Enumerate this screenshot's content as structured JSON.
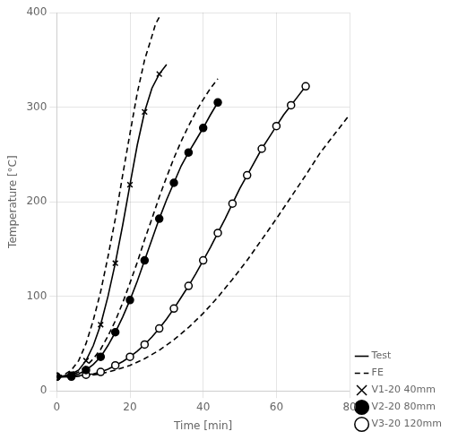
{
  "chart_data": {
    "type": "line",
    "xlabel": "Time [min]",
    "ylabel": "Temperature [°C]",
    "xlim": [
      0,
      80
    ],
    "ylim": [
      0,
      400
    ],
    "xticks": [
      0,
      20,
      40,
      60,
      80
    ],
    "yticks": [
      0,
      100,
      200,
      300,
      400
    ],
    "grid": true,
    "legend": "lower right",
    "color": "#000000",
    "legend_entries": [
      {
        "label": "Test",
        "line_style": "solid"
      },
      {
        "label": "FE",
        "line_style": "dashed"
      },
      {
        "label": "V1-20 40mm",
        "marker": "x"
      },
      {
        "label": "V2-20 80mm",
        "marker": "circle_filled"
      },
      {
        "label": "V3-20 120mm",
        "marker": "circle_open"
      }
    ],
    "series": [
      {
        "name": "V1-20 40mm",
        "line_style": "solid",
        "marker": "x",
        "x": [
          0,
          2,
          4,
          6,
          8,
          10,
          12,
          14,
          16,
          18,
          20,
          22,
          24,
          26,
          28,
          30
        ],
        "values": [
          15,
          16,
          18,
          22,
          32,
          48,
          70,
          100,
          135,
          175,
          218,
          260,
          295,
          320,
          335,
          345
        ]
      },
      {
        "name": "V1-20 40mm",
        "line_style": "dashed",
        "marker": "none",
        "x": [
          0,
          2,
          4,
          6,
          8,
          10,
          12,
          14,
          16,
          18,
          20,
          22,
          24,
          26,
          27,
          28
        ],
        "values": [
          15,
          17,
          22,
          32,
          50,
          75,
          105,
          142,
          182,
          228,
          272,
          315,
          350,
          375,
          388,
          395
        ]
      },
      {
        "name": "V2-20 80mm",
        "line_style": "solid",
        "marker": "circle_filled",
        "x": [
          0,
          2,
          4,
          6,
          8,
          10,
          12,
          14,
          16,
          18,
          20,
          22,
          24,
          26,
          28,
          30,
          32,
          34,
          36,
          38,
          40,
          42,
          44
        ],
        "values": [
          15,
          15,
          16,
          18,
          22,
          28,
          36,
          48,
          62,
          78,
          96,
          116,
          138,
          160,
          182,
          202,
          220,
          238,
          252,
          265,
          278,
          292,
          305
        ]
      },
      {
        "name": "V2-20 80mm",
        "line_style": "dashed",
        "marker": "none",
        "x": [
          0,
          2,
          4,
          6,
          8,
          10,
          12,
          14,
          16,
          18,
          20,
          22,
          24,
          26,
          28,
          30,
          32,
          34,
          36,
          38,
          40,
          42,
          44
        ],
        "values": [
          15,
          15,
          17,
          20,
          26,
          34,
          44,
          58,
          74,
          93,
          114,
          136,
          160,
          182,
          205,
          226,
          246,
          264,
          280,
          295,
          308,
          320,
          330
        ]
      },
      {
        "name": "V3-20 120mm",
        "line_style": "solid",
        "marker": "circle_open",
        "x": [
          0,
          2,
          4,
          6,
          8,
          10,
          12,
          14,
          16,
          18,
          20,
          22,
          24,
          26,
          28,
          30,
          32,
          34,
          36,
          38,
          40,
          42,
          44,
          46,
          48,
          50,
          52,
          54,
          56,
          58,
          60,
          62,
          64,
          66,
          68
        ],
        "values": [
          15,
          15,
          15,
          16,
          17,
          18,
          20,
          23,
          27,
          31,
          36,
          42,
          49,
          57,
          66,
          76,
          87,
          99,
          111,
          124,
          138,
          152,
          167,
          182,
          198,
          214,
          228,
          242,
          256,
          268,
          280,
          292,
          302,
          312,
          322
        ]
      },
      {
        "name": "V3-20 120mm",
        "line_style": "dashed",
        "marker": "none",
        "x": [
          0,
          4,
          8,
          12,
          16,
          20,
          24,
          28,
          32,
          36,
          40,
          44,
          48,
          52,
          56,
          60,
          64,
          68,
          72,
          76,
          80
        ],
        "values": [
          15,
          15,
          16,
          18,
          22,
          27,
          34,
          43,
          54,
          67,
          82,
          99,
          118,
          138,
          160,
          182,
          205,
          228,
          252,
          272,
          292
        ]
      }
    ]
  }
}
